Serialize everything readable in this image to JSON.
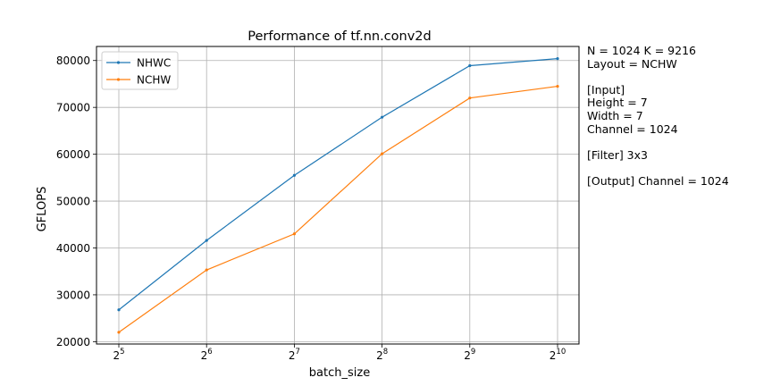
{
  "chart_data": {
    "type": "line",
    "title": "Performance of tf.nn.conv2d",
    "xlabel": "batch_size",
    "ylabel": "GFLOPS",
    "x_scale": "log2",
    "x": [
      32,
      64,
      128,
      256,
      512,
      1024
    ],
    "x_tick_labels": [
      {
        "base": "2",
        "exp": "5"
      },
      {
        "base": "2",
        "exp": "6"
      },
      {
        "base": "2",
        "exp": "7"
      },
      {
        "base": "2",
        "exp": "8"
      },
      {
        "base": "2",
        "exp": "9"
      },
      {
        "base": "2",
        "exp": "10"
      }
    ],
    "y_ticks": [
      20000,
      30000,
      40000,
      50000,
      60000,
      70000,
      80000
    ],
    "ylim": [
      19500,
      83000
    ],
    "grid": true,
    "legend_position": "top-left",
    "series": [
      {
        "name": "NHWC",
        "color": "#1f77b4",
        "values": [
          26800,
          41600,
          55500,
          67900,
          78900,
          80400
        ]
      },
      {
        "name": "NCHW",
        "color": "#ff7f0e",
        "values": [
          22000,
          35300,
          43000,
          60100,
          72000,
          74500
        ]
      }
    ],
    "annotation_lines": [
      "N = 1024 K = 9216",
      "Layout = NCHW",
      "",
      "[Input]",
      "Height = 7",
      "Width = 7",
      "Channel = 1024",
      "",
      "[Filter] 3x3",
      "",
      "[Output] Channel = 1024"
    ]
  }
}
